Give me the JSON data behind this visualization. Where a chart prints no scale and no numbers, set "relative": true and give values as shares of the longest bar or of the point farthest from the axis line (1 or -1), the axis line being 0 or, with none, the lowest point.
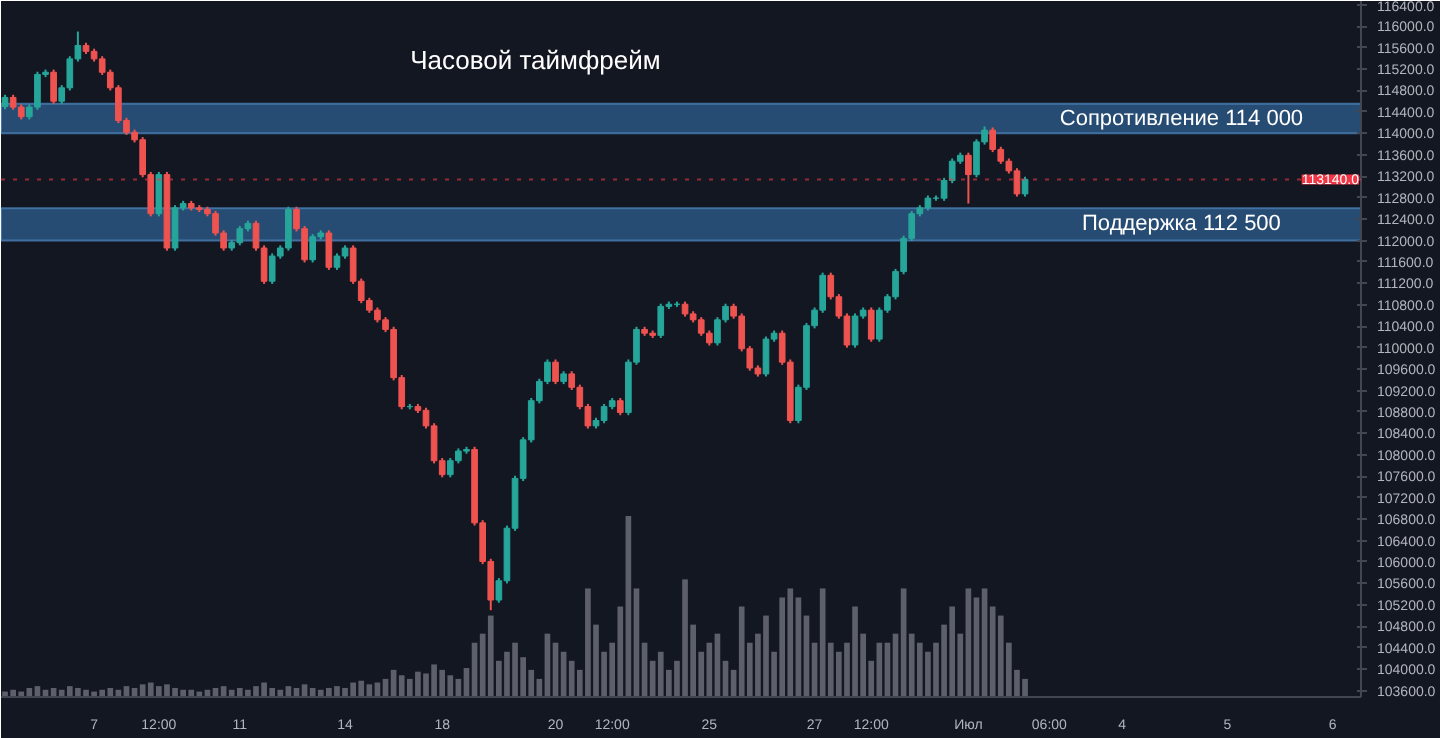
{
  "chart_data": [
    {
      "type": "candlestick",
      "title": "Часовой таймфрейм",
      "categories": [
        null,
        null,
        null,
        null,
        null,
        null,
        null,
        null,
        null,
        null,
        null,
        "7",
        null,
        null,
        null,
        null,
        null,
        null,
        null,
        "12:00",
        null,
        null,
        null,
        null,
        null,
        null,
        null,
        null,
        null,
        "11",
        null,
        null,
        null,
        null,
        null,
        null,
        null,
        null,
        null,
        null,
        null,
        null,
        "14",
        null,
        null,
        null,
        null,
        null,
        null,
        null,
        null,
        null,
        null,
        null,
        "18",
        null,
        null,
        null,
        null,
        null,
        null,
        null,
        null,
        null,
        null,
        null,
        null,
        null,
        "20",
        null,
        null,
        null,
        null,
        null,
        null,
        "12:00",
        null,
        null,
        null,
        null,
        null,
        null,
        null,
        null,
        null,
        null,
        null,
        "25",
        null,
        null,
        null,
        null,
        null,
        null,
        null,
        null,
        null,
        null,
        null,
        null,
        "27",
        null,
        null,
        null,
        null,
        null,
        null,
        "12:00",
        null,
        null,
        null,
        null,
        null,
        null,
        null,
        null,
        null,
        null,
        null,
        "Июл",
        null,
        null,
        null,
        null,
        null,
        null,
        null,
        null,
        null,
        "06:00",
        null,
        null,
        null,
        null,
        null,
        null,
        null,
        null,
        "4",
        null,
        null,
        null,
        null,
        null,
        null,
        null,
        null,
        null,
        null,
        null,
        null,
        "5",
        null,
        null,
        null,
        null,
        null,
        null,
        null,
        null,
        null,
        null,
        null,
        null,
        "6",
        null,
        null,
        null
      ],
      "ohlc": [
        [
          114500,
          114720,
          114450,
          114670
        ],
        [
          114670,
          114720,
          114440,
          114490
        ],
        [
          114490,
          114540,
          114260,
          114310
        ],
        [
          114310,
          114540,
          114260,
          114490
        ],
        [
          114490,
          115150,
          114440,
          115100
        ],
        [
          115100,
          115190,
          115050,
          115140
        ],
        [
          115140,
          115190,
          114550,
          114600
        ],
        [
          114600,
          114900,
          114550,
          114850
        ],
        [
          114850,
          115440,
          114800,
          115390
        ],
        [
          115390,
          115900,
          115340,
          115640
        ],
        [
          115640,
          115690,
          115480,
          115530
        ],
        [
          115530,
          115580,
          115340,
          115390
        ],
        [
          115390,
          115440,
          115090,
          115140
        ],
        [
          115140,
          115190,
          114800,
          114850
        ],
        [
          114850,
          114900,
          114190,
          114240
        ],
        [
          114240,
          114290,
          113970,
          114020
        ],
        [
          114020,
          114070,
          113830,
          113880
        ],
        [
          113880,
          113930,
          113180,
          113230
        ],
        [
          113230,
          113280,
          112450,
          112500
        ],
        [
          112500,
          113280,
          112450,
          113230
        ],
        [
          113230,
          113280,
          111810,
          111860
        ],
        [
          111860,
          112660,
          111810,
          112610
        ],
        [
          112610,
          112740,
          112560,
          112690
        ],
        [
          112690,
          112740,
          112560,
          112610
        ],
        [
          112610,
          112660,
          112530,
          112580
        ],
        [
          112580,
          112630,
          112450,
          112500
        ],
        [
          112500,
          112550,
          112090,
          112140
        ],
        [
          112140,
          112190,
          111810,
          111860
        ],
        [
          111860,
          112010,
          111810,
          111960
        ],
        [
          111960,
          112270,
          111910,
          112220
        ],
        [
          112220,
          112370,
          112170,
          112320
        ],
        [
          112320,
          112370,
          111810,
          111860
        ],
        [
          111860,
          111910,
          111190,
          111240
        ],
        [
          111240,
          111760,
          111190,
          111710
        ],
        [
          111710,
          111910,
          111660,
          111860
        ],
        [
          111860,
          112630,
          111810,
          112580
        ],
        [
          112580,
          112630,
          112170,
          112220
        ],
        [
          112220,
          112270,
          111590,
          111640
        ],
        [
          111640,
          112120,
          111590,
          112070
        ],
        [
          112070,
          112190,
          112020,
          112140
        ],
        [
          112140,
          112190,
          111450,
          111500
        ],
        [
          111500,
          111760,
          111450,
          111710
        ],
        [
          111710,
          111910,
          111660,
          111860
        ],
        [
          111860,
          111910,
          111190,
          111240
        ],
        [
          111240,
          111290,
          110830,
          110880
        ],
        [
          110880,
          110930,
          110650,
          110700
        ],
        [
          110700,
          110750,
          110470,
          110520
        ],
        [
          110520,
          110570,
          110290,
          110340
        ],
        [
          110340,
          110390,
          109390,
          109440
        ],
        [
          109440,
          109490,
          108850,
          108900
        ],
        [
          108900,
          108950,
          108850,
          108900
        ],
        [
          108900,
          108950,
          108780,
          108830
        ],
        [
          108830,
          108880,
          108490,
          108540
        ],
        [
          108540,
          108590,
          107840,
          107890
        ],
        [
          107890,
          107940,
          107580,
          107630
        ],
        [
          107630,
          107940,
          107580,
          107890
        ],
        [
          107890,
          108120,
          107840,
          108070
        ],
        [
          108070,
          108150,
          108020,
          108100
        ],
        [
          108100,
          108150,
          106680,
          106730
        ],
        [
          106730,
          106780,
          105960,
          106010
        ],
        [
          106010,
          106060,
          105100,
          105290
        ],
        [
          105290,
          105700,
          105240,
          105650
        ],
        [
          105650,
          106680,
          105600,
          106630
        ],
        [
          106630,
          107610,
          106580,
          107560
        ],
        [
          107560,
          108330,
          107510,
          108280
        ],
        [
          108280,
          109060,
          108230,
          109010
        ],
        [
          109010,
          109420,
          108960,
          109370
        ],
        [
          109370,
          109780,
          109320,
          109730
        ],
        [
          109730,
          109780,
          109320,
          109370
        ],
        [
          109370,
          109560,
          109320,
          109510
        ],
        [
          109510,
          109560,
          109210,
          109260
        ],
        [
          109260,
          109310,
          108850,
          108900
        ],
        [
          108900,
          108950,
          108490,
          108540
        ],
        [
          108540,
          108690,
          108490,
          108640
        ],
        [
          108640,
          108950,
          108590,
          108900
        ],
        [
          108900,
          109060,
          108850,
          109010
        ],
        [
          109010,
          109060,
          108740,
          108790
        ],
        [
          108790,
          109780,
          108740,
          109730
        ],
        [
          109730,
          110390,
          109680,
          110340
        ],
        [
          110340,
          110390,
          110220,
          110270
        ],
        [
          110270,
          110320,
          110180,
          110230
        ],
        [
          110230,
          110820,
          110180,
          110770
        ],
        [
          110770,
          110860,
          110720,
          110810
        ],
        [
          110810,
          110860,
          110760,
          110810
        ],
        [
          110810,
          110860,
          110580,
          110630
        ],
        [
          110630,
          110680,
          110470,
          110520
        ],
        [
          110520,
          110570,
          110220,
          110270
        ],
        [
          110270,
          110320,
          110040,
          110090
        ],
        [
          110090,
          110570,
          110040,
          110520
        ],
        [
          110520,
          110820,
          110470,
          110770
        ],
        [
          110770,
          110820,
          110540,
          110590
        ],
        [
          110590,
          110640,
          109930,
          109980
        ],
        [
          109980,
          110030,
          109570,
          109620
        ],
        [
          109620,
          109670,
          109460,
          109510
        ],
        [
          109510,
          110210,
          109460,
          110160
        ],
        [
          110160,
          110320,
          110110,
          110270
        ],
        [
          110270,
          110320,
          109680,
          109730
        ],
        [
          109730,
          109780,
          108590,
          108640
        ],
        [
          108640,
          109310,
          108590,
          109260
        ],
        [
          109260,
          110460,
          109210,
          110410
        ],
        [
          110410,
          110750,
          110360,
          110700
        ],
        [
          110700,
          111400,
          110650,
          111350
        ],
        [
          111350,
          111400,
          110900,
          110950
        ],
        [
          110950,
          111000,
          110540,
          110590
        ],
        [
          110590,
          110640,
          110000,
          110050
        ],
        [
          110050,
          110640,
          110000,
          110590
        ],
        [
          110590,
          110750,
          110540,
          110700
        ],
        [
          110700,
          110750,
          110110,
          110160
        ],
        [
          110160,
          110750,
          110110,
          110700
        ],
        [
          110700,
          111000,
          110650,
          110950
        ],
        [
          110950,
          111470,
          110900,
          111420
        ],
        [
          111420,
          112090,
          111370,
          112040
        ],
        [
          112040,
          112550,
          111990,
          112500
        ],
        [
          112500,
          112660,
          112450,
          112610
        ],
        [
          112610,
          112840,
          112560,
          112790
        ],
        [
          112790,
          112840,
          112740,
          112790
        ],
        [
          112790,
          113170,
          112740,
          113120
        ],
        [
          113120,
          113530,
          113070,
          113480
        ],
        [
          113480,
          113640,
          113430,
          113590
        ],
        [
          113590,
          113640,
          112690,
          113230
        ],
        [
          113230,
          113890,
          113180,
          113840
        ],
        [
          113840,
          114130,
          113790,
          114060
        ],
        [
          114060,
          114110,
          113650,
          113700
        ],
        [
          113700,
          113750,
          113430,
          113480
        ],
        [
          113480,
          113530,
          113250,
          113300
        ],
        [
          113300,
          113350,
          112820,
          112870
        ],
        [
          112870,
          113190,
          112820,
          113140
        ],
        null,
        null,
        null,
        null,
        null,
        null,
        null,
        null,
        null,
        null,
        null,
        null,
        null,
        null,
        null,
        null,
        null,
        null,
        null,
        null,
        null,
        null,
        null,
        null,
        null,
        null,
        null,
        null,
        null,
        null,
        null,
        null,
        null,
        null,
        null,
        null,
        null,
        null,
        null,
        null,
        null
      ],
      "ylim": [
        103480,
        116470
      ],
      "yticks": [
        {
          "value": 103600,
          "label": "103600.0"
        },
        {
          "value": 104000,
          "label": "104000.0"
        },
        {
          "value": 104400,
          "label": "104400.0"
        },
        {
          "value": 104800,
          "label": "104800.0"
        },
        {
          "value": 105200,
          "label": "105200.0"
        },
        {
          "value": 105600,
          "label": "105600.0"
        },
        {
          "value": 106000,
          "label": "106000.0"
        },
        {
          "value": 106400,
          "label": "106400.0"
        },
        {
          "value": 106800,
          "label": "106800.0"
        },
        {
          "value": 107200,
          "label": "107200.0"
        },
        {
          "value": 107600,
          "label": "107600.0"
        },
        {
          "value": 108000,
          "label": "108000.0"
        },
        {
          "value": 108400,
          "label": "108400.0"
        },
        {
          "value": 108800,
          "label": "108800.0"
        },
        {
          "value": 109200,
          "label": "109200.0"
        },
        {
          "value": 109600,
          "label": "109600.0"
        },
        {
          "value": 110000,
          "label": "110000.0"
        },
        {
          "value": 110400,
          "label": "110400.0"
        },
        {
          "value": 110800,
          "label": "110800.0"
        },
        {
          "value": 111200,
          "label": "111200.0"
        },
        {
          "value": 111600,
          "label": "111600.0"
        },
        {
          "value": 112000,
          "label": "112000.0"
        },
        {
          "value": 112400,
          "label": "112400.0"
        },
        {
          "value": 112800,
          "label": "112800.0"
        },
        {
          "value": 113200,
          "label": "113200.0"
        },
        {
          "value": 113600,
          "label": "113600.0"
        },
        {
          "value": 114000,
          "label": "114000.0"
        },
        {
          "value": 114400,
          "label": "114400.0"
        },
        {
          "value": 114800,
          "label": "114800.0"
        },
        {
          "value": 115200,
          "label": "115200.0"
        },
        {
          "value": 115600,
          "label": "115600.0"
        },
        {
          "value": 116000,
          "label": "116000.0"
        },
        {
          "value": 116400,
          "label": "116400.0"
        }
      ],
      "bands": [
        {
          "axis": "y",
          "from": 114000,
          "to": 114550,
          "label": "Сопротивление 114 000",
          "color": "#2f5f8f"
        },
        {
          "axis": "y",
          "from": 112000,
          "to": 112600,
          "label": "Поддержка 112 500",
          "color": "#2f5f8f"
        }
      ],
      "ref_lines": [
        {
          "axis": "y",
          "value": 113140,
          "label": "113140.0",
          "color": "#f23645",
          "line_style": "dotted"
        }
      ]
    },
    {
      "type": "bar",
      "relative": true,
      "color": "#5d606b",
      "categories": [
        null,
        null,
        null,
        null,
        null,
        null,
        null,
        null,
        null,
        null,
        null,
        null,
        null,
        null,
        null,
        null,
        null,
        null,
        null,
        null,
        null,
        null,
        null,
        null,
        null,
        null,
        null,
        null,
        null,
        null,
        null,
        null,
        null,
        null,
        null,
        null,
        null,
        null,
        null,
        null,
        null,
        null,
        null,
        null,
        null,
        null,
        null,
        null,
        null,
        null,
        null,
        null,
        null,
        null,
        null,
        null,
        null,
        null,
        null,
        null,
        null,
        null,
        null,
        null,
        null,
        null,
        null,
        null,
        null,
        null,
        null,
        null,
        null,
        null,
        null,
        null,
        null,
        null,
        null,
        null,
        null,
        null,
        null,
        null,
        null,
        null,
        null,
        null,
        null,
        null,
        null,
        null,
        null,
        null,
        null,
        null,
        null,
        null,
        null,
        null,
        null,
        null,
        null,
        null,
        null,
        null,
        null,
        null,
        null,
        null,
        null,
        null,
        null,
        null,
        null,
        null,
        null,
        null,
        null,
        null,
        null,
        null,
        null,
        null,
        null,
        null,
        null,
        null,
        null,
        null,
        null,
        null,
        null,
        null,
        null,
        null,
        null,
        null,
        null,
        null,
        null,
        null,
        null,
        null,
        null,
        null,
        null,
        null,
        null,
        null,
        null,
        null,
        null,
        null,
        null,
        null,
        null,
        null,
        null,
        null,
        null,
        null,
        null,
        null,
        null,
        null,
        null,
        null
      ],
      "values": [
        0.03,
        0.04,
        0.03,
        0.05,
        0.06,
        0.04,
        0.05,
        0.04,
        0.06,
        0.05,
        0.04,
        0.03,
        0.04,
        0.05,
        0.04,
        0.06,
        0.05,
        0.07,
        0.08,
        0.06,
        0.07,
        0.05,
        0.04,
        0.04,
        0.03,
        0.04,
        0.05,
        0.06,
        0.04,
        0.05,
        0.04,
        0.06,
        0.08,
        0.05,
        0.04,
        0.06,
        0.05,
        0.07,
        0.05,
        0.04,
        0.05,
        0.06,
        0.05,
        0.08,
        0.09,
        0.07,
        0.08,
        0.1,
        0.15,
        0.12,
        0.1,
        0.14,
        0.13,
        0.18,
        0.15,
        0.12,
        0.1,
        0.16,
        0.3,
        0.35,
        0.45,
        0.2,
        0.25,
        0.3,
        0.22,
        0.15,
        0.1,
        0.35,
        0.3,
        0.25,
        0.2,
        0.15,
        0.6,
        0.4,
        0.25,
        0.3,
        0.5,
        1.0,
        0.6,
        0.3,
        0.2,
        0.25,
        0.15,
        0.2,
        0.65,
        0.4,
        0.25,
        0.3,
        0.35,
        0.2,
        0.15,
        0.5,
        0.3,
        0.35,
        0.45,
        0.25,
        0.55,
        0.6,
        0.55,
        0.45,
        0.3,
        0.6,
        0.3,
        0.25,
        0.3,
        0.5,
        0.35,
        0.2,
        0.3,
        0.3,
        0.35,
        0.6,
        0.35,
        0.3,
        0.25,
        0.3,
        0.4,
        0.5,
        0.35,
        0.6,
        0.55,
        0.6,
        0.5,
        0.45,
        0.3,
        0.15,
        0.1,
        null,
        null,
        null,
        null,
        null,
        null,
        null,
        null,
        null,
        null,
        null,
        null,
        null,
        null,
        null,
        null,
        null,
        null,
        null,
        null,
        null,
        null,
        null,
        null,
        null,
        null,
        null,
        null,
        null,
        null,
        null,
        null,
        null,
        null,
        null,
        null,
        null,
        null,
        null,
        null,
        null
      ]
    }
  ]
}
